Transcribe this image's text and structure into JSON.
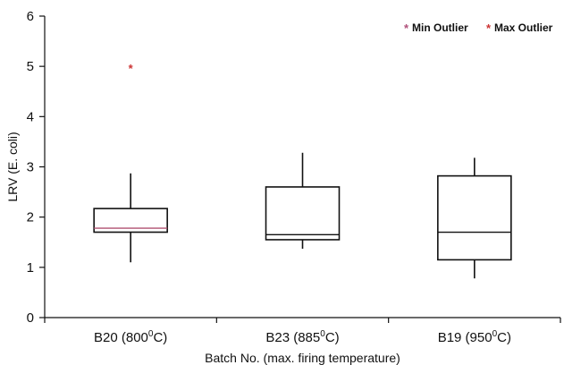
{
  "chart_data": {
    "type": "box",
    "title": "",
    "xlabel": "Batch No. (max. firing temperature)",
    "ylabel": "LRV (E. coli)",
    "ylim": [
      0,
      6
    ],
    "yticks": [
      0,
      1,
      2,
      3,
      4,
      5,
      6
    ],
    "grid": false,
    "legend_position": "top-right",
    "legend": [
      {
        "name": "Min Outlier",
        "marker": "*",
        "color": "#b0507a"
      },
      {
        "name": "Max Outlier",
        "marker": "*",
        "color": "#cc3333"
      }
    ],
    "categories": [
      {
        "prefix": "B20 (800",
        "sup": "0",
        "suffix": "C)"
      },
      {
        "prefix": "B23 (885",
        "sup": "0",
        "suffix": "C)"
      },
      {
        "prefix": "B19 (950",
        "sup": "0",
        "suffix": "C)"
      }
    ],
    "boxes": [
      {
        "whisker_min": 1.1,
        "q1": 1.7,
        "median": 1.78,
        "q3": 2.17,
        "whisker_max": 2.87,
        "max_outliers": [
          4.97
        ],
        "min_outliers": []
      },
      {
        "whisker_min": 1.37,
        "q1": 1.55,
        "median": 1.65,
        "q3": 2.6,
        "whisker_max": 3.28,
        "max_outliers": [],
        "min_outliers": []
      },
      {
        "whisker_min": 0.78,
        "q1": 1.15,
        "median": 1.7,
        "q3": 2.82,
        "whisker_max": 3.18,
        "max_outliers": [],
        "min_outliers": []
      }
    ]
  }
}
